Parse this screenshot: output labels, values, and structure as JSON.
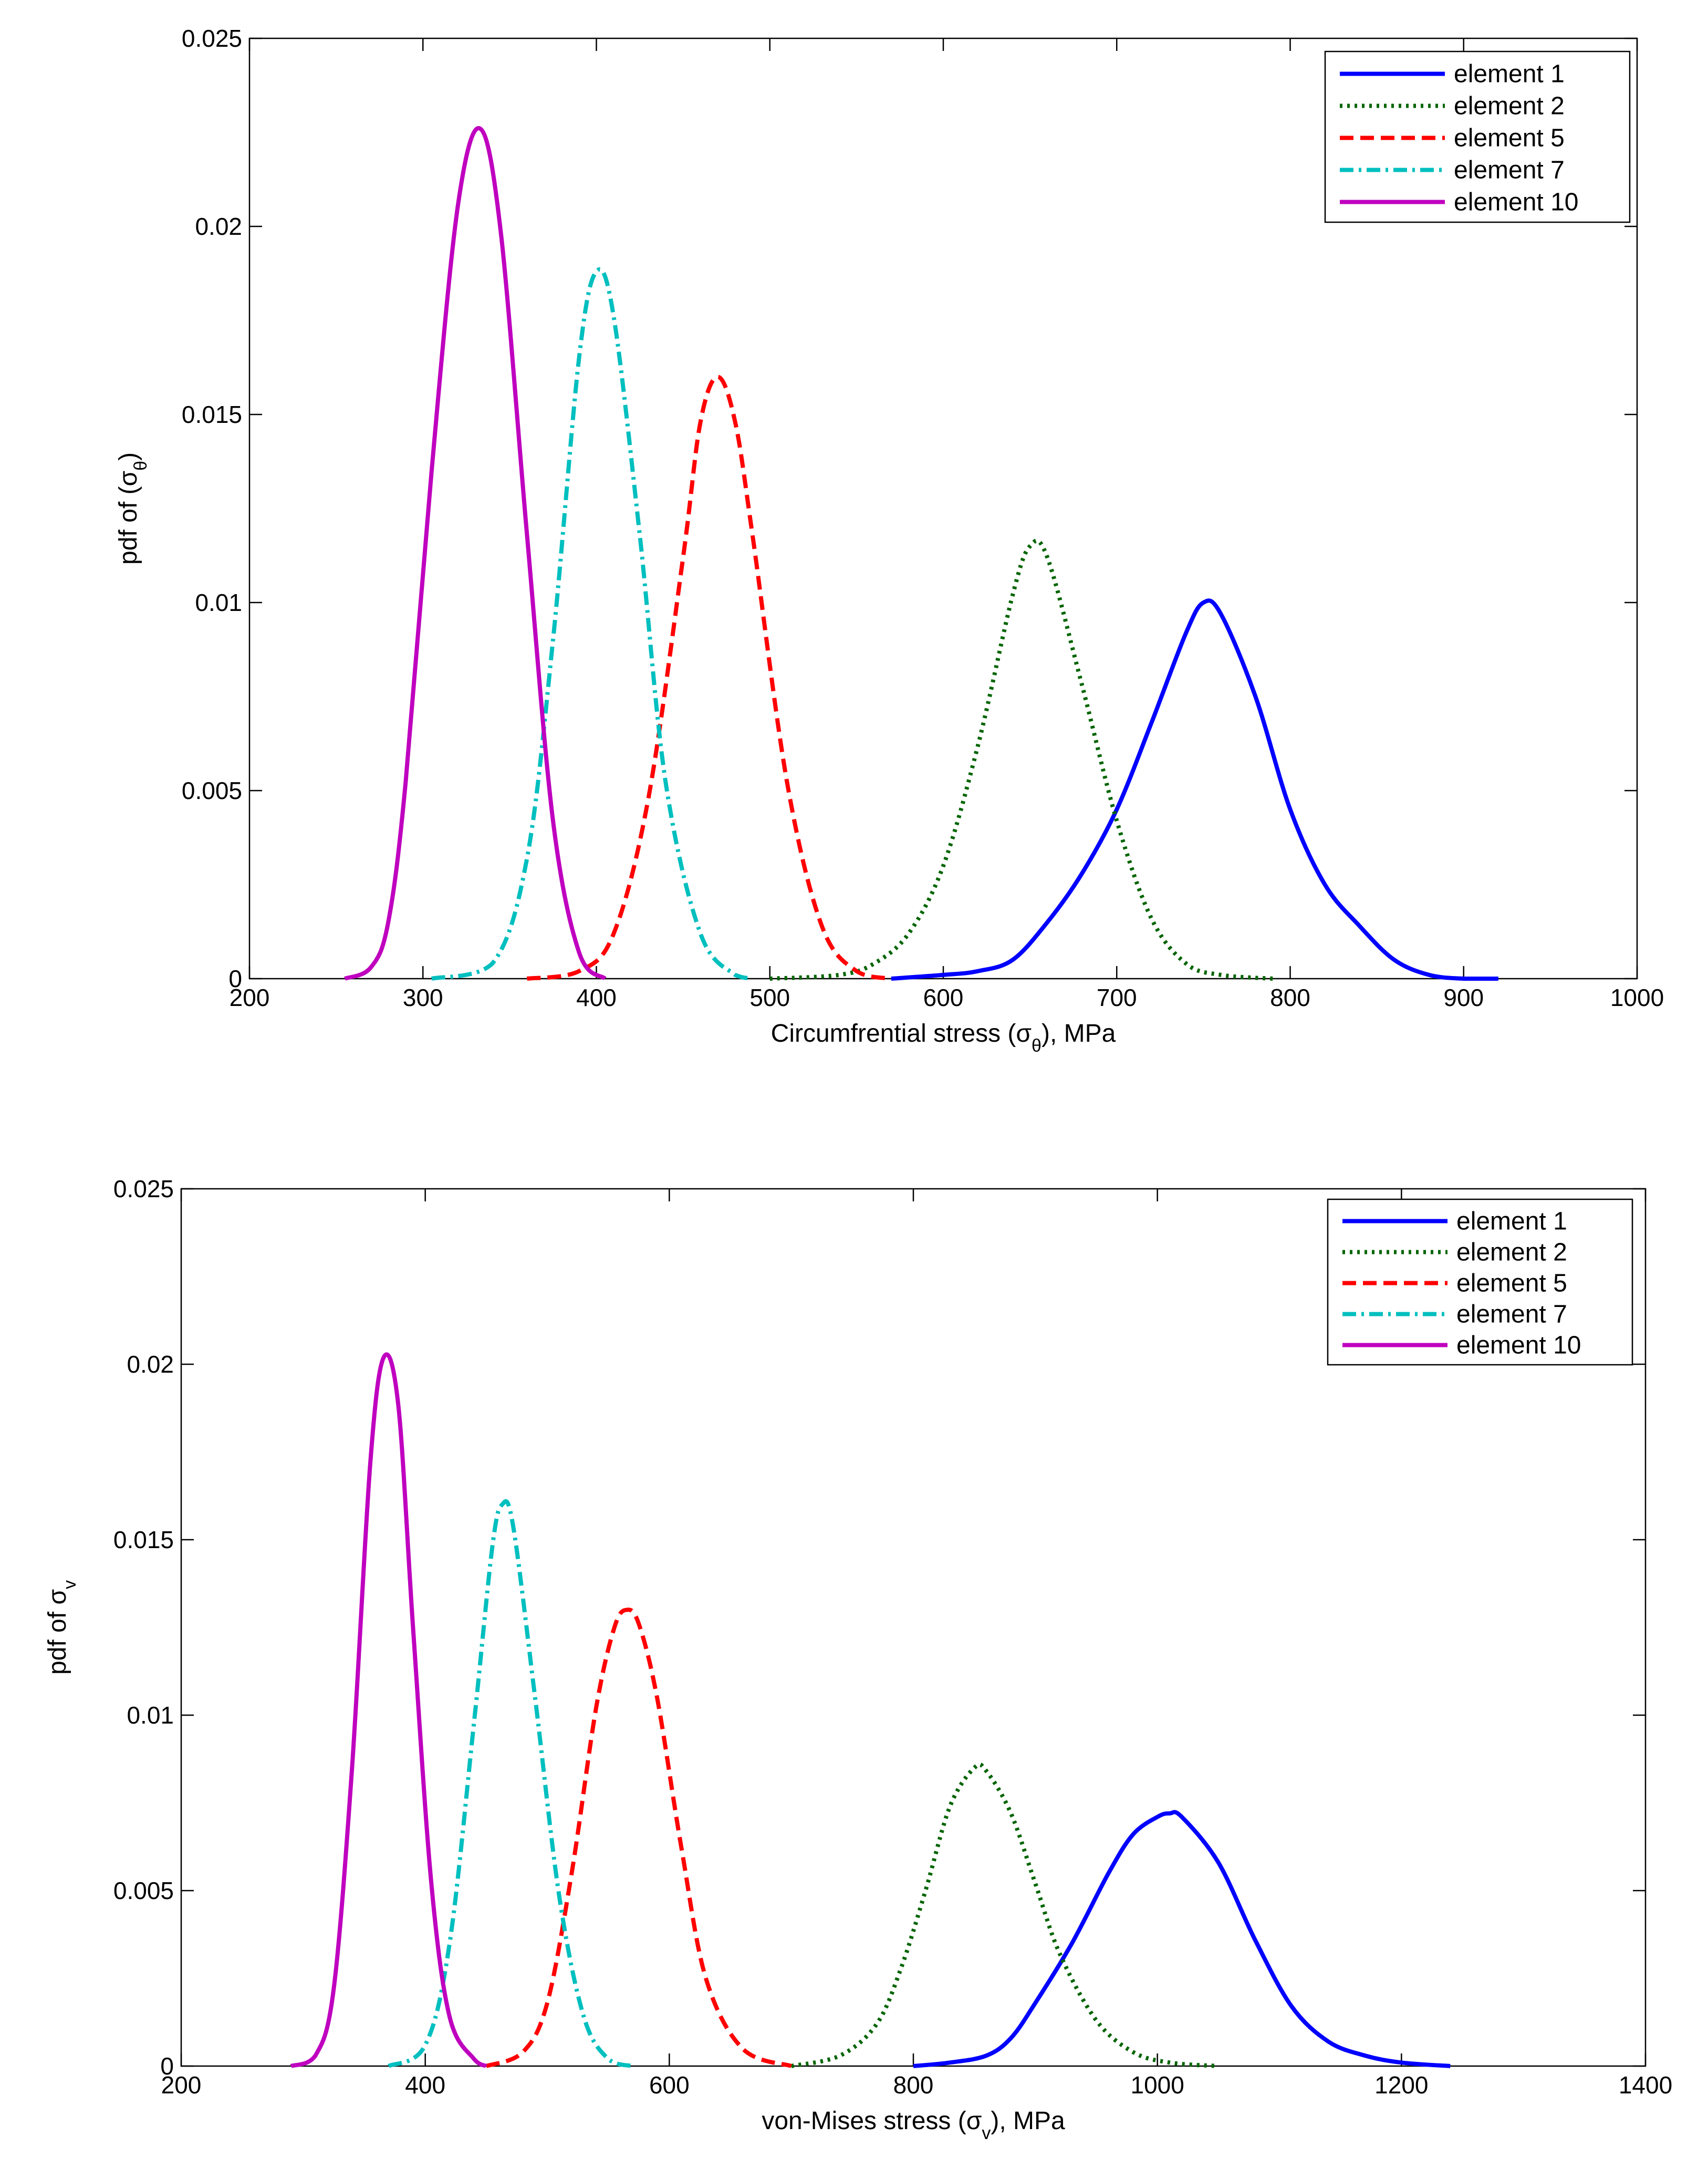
{
  "chart_data": [
    {
      "type": "line",
      "xlabel": "Circumfrential stress (σθ), MPa",
      "xlabel_parts": {
        "pre": "Circumfrential stress (",
        "sym": "σ",
        "sub": "θ",
        "post": "), MPa"
      },
      "ylabel": "pdf of (σθ)",
      "ylabel_parts": {
        "pre": "pdf of (",
        "sym": "σ",
        "sub": "θ",
        "post": ")"
      },
      "xlim": [
        200,
        1000
      ],
      "ylim": [
        0,
        0.025
      ],
      "xticks": [
        200,
        300,
        400,
        500,
        600,
        700,
        800,
        900,
        1000
      ],
      "xtick_labels": [
        "200",
        "300",
        "400",
        "500",
        "600",
        "700",
        "800",
        "900",
        "1000"
      ],
      "yticks": [
        0,
        0.005,
        0.01,
        0.015,
        0.02,
        0.025
      ],
      "ytick_labels": [
        "0",
        "0.005",
        "0.01",
        "0.015",
        "0.02",
        "0.025"
      ],
      "legend_position": "top-right",
      "series": [
        {
          "name": "element 1",
          "color": "#0000ff",
          "style": "solid",
          "x": [
            570,
            600,
            620,
            640,
            660,
            680,
            700,
            720,
            740,
            750,
            760,
            780,
            800,
            820,
            840,
            860,
            880,
            900,
            920
          ],
          "y": [
            0,
            0.0001,
            0.0002,
            0.0005,
            0.0015,
            0.0028,
            0.0045,
            0.0068,
            0.0092,
            0.01,
            0.0097,
            0.0075,
            0.0045,
            0.0025,
            0.0014,
            0.0005,
            0.0001,
            0,
            0
          ]
        },
        {
          "name": "element 2",
          "color": "#006400",
          "style": "dotted",
          "x": [
            500,
            540,
            560,
            580,
            600,
            620,
            640,
            650,
            660,
            680,
            700,
            720,
            740,
            760,
            790
          ],
          "y": [
            0,
            0.0001,
            0.0004,
            0.0012,
            0.003,
            0.0062,
            0.0102,
            0.0115,
            0.0112,
            0.0078,
            0.0042,
            0.0016,
            0.0004,
            0.0001,
            0
          ]
        },
        {
          "name": "element 5",
          "color": "#ff0000",
          "style": "dashed",
          "x": [
            360,
            390,
            410,
            430,
            450,
            460,
            470,
            480,
            490,
            510,
            530,
            550,
            570
          ],
          "y": [
            0,
            0.0002,
            0.0012,
            0.0048,
            0.0112,
            0.0148,
            0.016,
            0.0148,
            0.0118,
            0.0052,
            0.0014,
            0.0002,
            0
          ]
        },
        {
          "name": "element 7",
          "color": "#00bfbf",
          "style": "dashdot",
          "x": [
            305,
            340,
            360,
            375,
            390,
            400,
            410,
            425,
            440,
            460,
            480,
            490
          ],
          "y": [
            0,
            0.0004,
            0.0032,
            0.009,
            0.0165,
            0.0188,
            0.0176,
            0.0118,
            0.0052,
            0.0012,
            0.0001,
            0
          ]
        },
        {
          "name": "element 10",
          "color": "#bf00bf",
          "style": "solid",
          "x": [
            255,
            270,
            280,
            290,
            305,
            320,
            333,
            345,
            360,
            375,
            390,
            405
          ],
          "y": [
            0,
            0.0003,
            0.0015,
            0.0052,
            0.0135,
            0.0205,
            0.0226,
            0.0198,
            0.0118,
            0.0042,
            0.0007,
            0
          ]
        }
      ]
    },
    {
      "type": "line",
      "xlabel": "von-Mises stress (σv), MPa",
      "xlabel_parts": {
        "pre": "von-Mises stress (",
        "sym": "σ",
        "sub": "v",
        "post": "), MPa"
      },
      "ylabel": "pdf of σv",
      "ylabel_parts": {
        "pre": "pdf of ",
        "sym": "σ",
        "sub": "v",
        "post": ""
      },
      "xlim": [
        200,
        1400
      ],
      "ylim": [
        0,
        0.025
      ],
      "xticks": [
        200,
        400,
        600,
        800,
        1000,
        1200,
        1400
      ],
      "xtick_labels": [
        "200",
        "400",
        "600",
        "800",
        "1000",
        "1200",
        "1400"
      ],
      "yticks": [
        0,
        0.005,
        0.01,
        0.015,
        0.02,
        0.025
      ],
      "ytick_labels": [
        "0",
        "0.005",
        "0.01",
        "0.015",
        "0.02",
        "0.025"
      ],
      "legend_position": "top-right",
      "series": [
        {
          "name": "element 1",
          "color": "#0000ff",
          "style": "solid",
          "x": [
            800,
            830,
            860,
            880,
            900,
            930,
            960,
            980,
            1000,
            1010,
            1020,
            1050,
            1080,
            1110,
            1140,
            1170,
            1200,
            1240
          ],
          "y": [
            0,
            0.0001,
            0.0003,
            0.0008,
            0.0018,
            0.0035,
            0.0055,
            0.0066,
            0.0071,
            0.0072,
            0.0071,
            0.0058,
            0.0036,
            0.0017,
            0.0007,
            0.0003,
            0.0001,
            0
          ]
        },
        {
          "name": "element 2",
          "color": "#006400",
          "style": "dotted",
          "x": [
            700,
            740,
            770,
            790,
            810,
            830,
            850,
            860,
            880,
            900,
            920,
            950,
            980,
            1010,
            1050
          ],
          "y": [
            0,
            0.0003,
            0.0012,
            0.0028,
            0.005,
            0.0074,
            0.0085,
            0.0084,
            0.0072,
            0.0052,
            0.0032,
            0.0013,
            0.0004,
            0.0001,
            0
          ]
        },
        {
          "name": "element 5",
          "color": "#ff0000",
          "style": "dashed",
          "x": [
            450,
            480,
            500,
            520,
            540,
            555,
            565,
            575,
            590,
            610,
            630,
            660,
            700
          ],
          "y": [
            0,
            0.0004,
            0.0018,
            0.0055,
            0.0102,
            0.0125,
            0.013,
            0.0126,
            0.0105,
            0.0062,
            0.0025,
            0.0005,
            0
          ]
        },
        {
          "name": "element 7",
          "color": "#00bfbf",
          "style": "dashdot",
          "x": [
            370,
            400,
            420,
            440,
            455,
            463,
            472,
            490,
            510,
            530,
            550,
            570
          ],
          "y": [
            0,
            0.0006,
            0.0035,
            0.0098,
            0.0148,
            0.016,
            0.0154,
            0.0105,
            0.0048,
            0.0014,
            0.0002,
            0
          ]
        },
        {
          "name": "element 10",
          "color": "#bf00bf",
          "style": "solid",
          "x": [
            290,
            310,
            325,
            340,
            355,
            366,
            378,
            390,
            405,
            420,
            440,
            450
          ],
          "y": [
            0,
            0.0003,
            0.0022,
            0.0085,
            0.0172,
            0.0202,
            0.0188,
            0.0125,
            0.0052,
            0.0014,
            0.0002,
            0
          ]
        }
      ]
    }
  ]
}
